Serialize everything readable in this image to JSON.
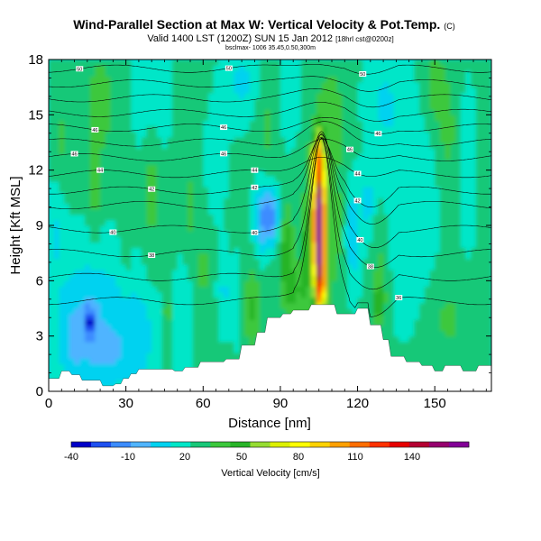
{
  "chart_data": {
    "type": "heatmap",
    "title": "Wind-Parallel Section at Max W: Vertical Velocity & Pot.Temp.",
    "title_mark": "(C)",
    "subtitle": "Valid 1400 LST (1200Z) SUN 15 Jan 2012",
    "subtitle_note": "[18hrl cst@0200z]",
    "footnote": "bsclmax- 1006 35.45,0.50,300m",
    "xlabel": "Distance [nm]",
    "ylabel": "Height [Kft MSL]",
    "xlim": [
      0,
      172
    ],
    "ylim": [
      0,
      18
    ],
    "xticks": [
      "0",
      "30",
      "60",
      "90",
      "120",
      "150"
    ],
    "yticks": [
      "0",
      "3",
      "6",
      "9",
      "12",
      "15",
      "18"
    ],
    "colorbar": {
      "label": "Vertical Velocity [cm/s]",
      "tick_labels": [
        "-40",
        "-10",
        "20",
        "50",
        "80",
        "110",
        "140"
      ],
      "colors": [
        "#0000c8",
        "#1e50f0",
        "#3c8cff",
        "#50b4ff",
        "#00d2f0",
        "#00e6c8",
        "#18c878",
        "#3cc83c",
        "#28b428",
        "#96dc32",
        "#dcf000",
        "#ffff00",
        "#ffd200",
        "#ffa000",
        "#ff6e00",
        "#ff3200",
        "#e60000",
        "#b40032",
        "#96006e",
        "#820096"
      ]
    },
    "contour_labels": [
      "50",
      "40",
      "44",
      "42",
      "48",
      "38",
      "36",
      "34",
      "32",
      "46"
    ],
    "terrain_kft": [
      [
        0,
        0.7
      ],
      [
        4,
        0.7
      ],
      [
        5,
        1.1
      ],
      [
        8,
        1.1
      ],
      [
        9,
        0.9
      ],
      [
        12,
        0.9
      ],
      [
        13,
        0.6
      ],
      [
        20,
        0.6
      ],
      [
        21,
        0.3
      ],
      [
        25,
        0.3
      ],
      [
        26,
        0.4
      ],
      [
        28,
        0.4
      ],
      [
        29,
        0.7
      ],
      [
        31,
        0.7
      ],
      [
        32,
        0.95
      ],
      [
        34,
        0.95
      ],
      [
        35,
        1.2
      ],
      [
        48,
        1.2
      ],
      [
        49,
        1.1
      ],
      [
        52,
        1.1
      ],
      [
        53,
        1.3
      ],
      [
        58,
        1.3
      ],
      [
        59,
        1.6
      ],
      [
        68,
        1.6
      ],
      [
        69,
        1.75
      ],
      [
        74,
        1.75
      ],
      [
        75,
        2.5
      ],
      [
        80,
        2.5
      ],
      [
        81,
        3.2
      ],
      [
        84,
        3.2
      ],
      [
        85,
        4.0
      ],
      [
        90,
        4.0
      ],
      [
        91,
        4.2
      ],
      [
        94,
        4.2
      ],
      [
        95,
        4.4
      ],
      [
        101,
        4.4
      ],
      [
        102,
        4.7
      ],
      [
        111,
        4.7
      ],
      [
        112,
        4.2
      ],
      [
        119,
        4.2
      ],
      [
        120,
        4.5
      ],
      [
        124,
        4.5
      ],
      [
        125,
        3.6
      ],
      [
        129,
        3.6
      ],
      [
        130,
        2.8
      ],
      [
        132,
        2.8
      ],
      [
        133,
        1.9
      ],
      [
        138,
        1.9
      ],
      [
        139,
        1.6
      ],
      [
        144,
        1.6
      ],
      [
        145,
        1.4
      ],
      [
        149,
        1.4
      ],
      [
        150,
        1.1
      ],
      [
        153,
        1.1
      ],
      [
        154,
        1.4
      ],
      [
        160,
        1.4
      ],
      [
        161,
        1.1
      ],
      [
        166,
        1.1
      ],
      [
        167,
        1.4
      ],
      [
        172,
        1.4
      ]
    ],
    "velocity_features": [
      {
        "x": 105,
        "z": 9.0,
        "sx": 1.6,
        "sz": 2.6,
        "w": 150
      },
      {
        "x": 104,
        "z": 12.6,
        "sx": 1.8,
        "sz": 0.8,
        "w": 30
      },
      {
        "x": 106,
        "z": 5.8,
        "sx": 1.6,
        "sz": 1.0,
        "w": 40
      },
      {
        "x": 100,
        "z": 7.6,
        "sx": 1.4,
        "sz": 2.4,
        "w": 25
      },
      {
        "x": 86,
        "z": 9.5,
        "sx": 3.0,
        "sz": 1.1,
        "w": -40
      },
      {
        "x": 82,
        "z": 9.3,
        "sx": 1.6,
        "sz": 1.5,
        "w": -15
      },
      {
        "x": 92,
        "z": 8.0,
        "sx": 2.2,
        "sz": 1.8,
        "w": 25
      },
      {
        "x": 95,
        "z": 5.5,
        "sx": 2.5,
        "sz": 1.0,
        "w": 22
      },
      {
        "x": 79,
        "z": 4.5,
        "sx": 2.2,
        "sz": 1.6,
        "w": 20
      },
      {
        "x": 111,
        "z": 8.5,
        "sx": 3.5,
        "sz": 2.5,
        "w": 12
      },
      {
        "x": 118,
        "z": 8.5,
        "sx": 2.2,
        "sz": 2.0,
        "w": -22
      },
      {
        "x": 124,
        "z": 10.2,
        "sx": 1.8,
        "sz": 1.3,
        "w": -15
      },
      {
        "x": 129,
        "z": 6.8,
        "sx": 2.4,
        "sz": 2.0,
        "w": 12
      },
      {
        "x": 128,
        "z": 4.8,
        "sx": 1.8,
        "sz": 0.7,
        "w": 22
      },
      {
        "x": 140,
        "z": 10.0,
        "sx": 7,
        "sz": 4,
        "w": -12
      },
      {
        "x": 155,
        "z": 4.0,
        "sx": 6,
        "sz": 1.6,
        "w": 10
      },
      {
        "x": 17,
        "z": 4.2,
        "sx": 10,
        "sz": 2.6,
        "w": -20
      },
      {
        "x": 16,
        "z": 3.8,
        "sx": 1.6,
        "sz": 0.6,
        "w": -35
      },
      {
        "x": 35,
        "z": 3.0,
        "sx": 6,
        "sz": 2.0,
        "w": -15
      },
      {
        "x": 9,
        "z": 2.5,
        "sx": 4,
        "sz": 1.8,
        "w": -12
      },
      {
        "x": 22,
        "z": 1.8,
        "sx": 6,
        "sz": 1.2,
        "w": -12
      },
      {
        "x": 52,
        "z": 4.0,
        "sx": 2.5,
        "sz": 2.0,
        "w": -10
      },
      {
        "x": 68,
        "z": 5.5,
        "sx": 1.5,
        "sz": 1.5,
        "w": -15
      },
      {
        "x": 73,
        "z": 5.0,
        "sx": 1.5,
        "sz": 1.5,
        "w": -12
      },
      {
        "x": 60,
        "z": 6.5,
        "sx": 1.3,
        "sz": 2.0,
        "w": 12
      },
      {
        "x": 55,
        "z": 10.0,
        "sx": 1.6,
        "sz": 2.0,
        "w": 10
      },
      {
        "x": 46,
        "z": 4.2,
        "sx": 1.4,
        "sz": 1.6,
        "w": 15
      },
      {
        "x": 40,
        "z": 11.0,
        "sx": 2.0,
        "sz": 3.0,
        "w": 12
      },
      {
        "x": 30,
        "z": 9.0,
        "sx": 1.5,
        "sz": 2.5,
        "w": 10
      },
      {
        "x": 18,
        "z": 10.5,
        "sx": 1.6,
        "sz": 2.0,
        "w": 12
      },
      {
        "x": 20,
        "z": 15.5,
        "sx": 4,
        "sz": 2.0,
        "w": 14
      },
      {
        "x": 40,
        "z": 16.0,
        "sx": 5,
        "sz": 2.0,
        "w": -10
      },
      {
        "x": 75,
        "z": 16.8,
        "sx": 5,
        "sz": 1.5,
        "w": -14
      },
      {
        "x": 85,
        "z": 14.5,
        "sx": 3,
        "sz": 2.0,
        "w": 10
      },
      {
        "x": 93,
        "z": 16.0,
        "sx": 3,
        "sz": 2.0,
        "w": -8
      },
      {
        "x": 110,
        "z": 15.0,
        "sx": 4,
        "sz": 2.5,
        "w": 12
      },
      {
        "x": 130,
        "z": 15.8,
        "sx": 5,
        "sz": 2.0,
        "w": -12
      },
      {
        "x": 150,
        "z": 16.5,
        "sx": 3,
        "sz": 1.5,
        "w": 14
      },
      {
        "x": 155,
        "z": 14.0,
        "sx": 2.5,
        "sz": 2.0,
        "w": 12
      },
      {
        "x": 163,
        "z": 12.0,
        "sx": 2.0,
        "sz": 3.0,
        "w": -10
      },
      {
        "x": 5,
        "z": 13.5,
        "sx": 3,
        "sz": 2.0,
        "w": 10
      },
      {
        "x": 65,
        "z": 12.5,
        "sx": 3,
        "sz": 2.0,
        "w": -8
      },
      {
        "x": 3,
        "z": 9.0,
        "sx": 2.5,
        "sz": 2.0,
        "w": -12
      }
    ],
    "background_w": 12,
    "contours": [
      {
        "z0": 17.5,
        "label": "50",
        "lx": [
          12,
          70,
          122
        ]
      },
      {
        "z0": 16.7,
        "label": "",
        "lx": []
      },
      {
        "z0": 15.9,
        "label": "",
        "lx": []
      },
      {
        "z0": 15.1,
        "label": "",
        "lx": []
      },
      {
        "z0": 14.3,
        "label": "46",
        "lx": [
          18,
          68,
          128
        ]
      },
      {
        "z0": 13.5,
        "label": "",
        "lx": []
      },
      {
        "z0": 12.7,
        "label": "46",
        "lx": [
          10,
          68,
          117
        ]
      },
      {
        "z0": 11.8,
        "label": "44",
        "lx": [
          20,
          80,
          120
        ]
      },
      {
        "z0": 10.9,
        "label": "42",
        "lx": [
          40,
          80,
          120
        ]
      },
      {
        "z0": 10.1,
        "label": "",
        "lx": []
      },
      {
        "z0": 8.8,
        "label": "40",
        "lx": [
          25,
          80,
          121
        ]
      },
      {
        "z0": 7.5,
        "label": "38",
        "lx": [
          40,
          125
        ]
      },
      {
        "z0": 6.2,
        "label": "",
        "lx": []
      },
      {
        "z0": 4.9,
        "label": "36",
        "lx": [
          136
        ]
      }
    ]
  }
}
